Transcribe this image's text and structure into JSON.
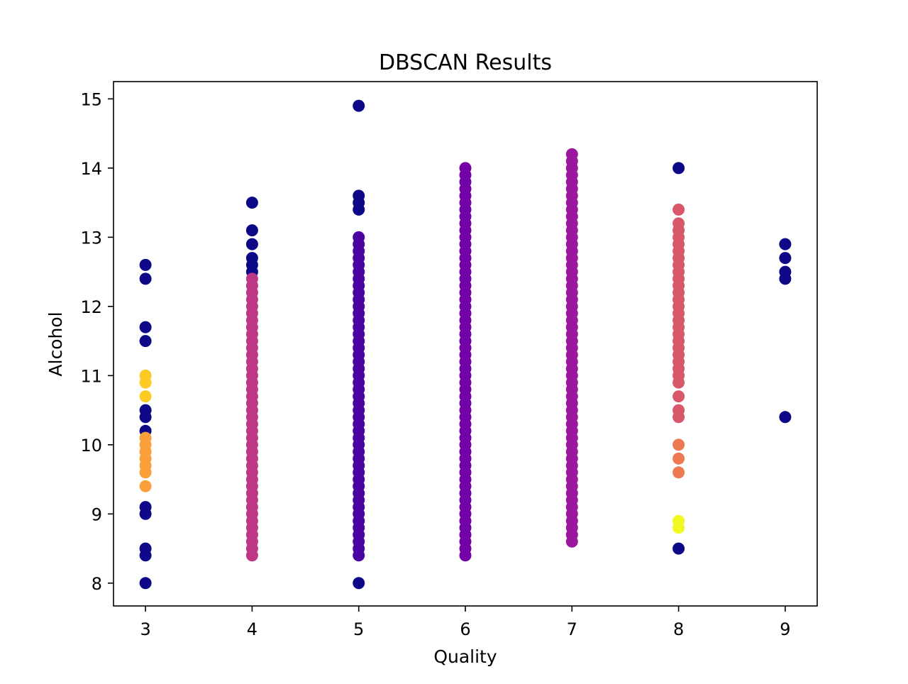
{
  "chart_data": {
    "type": "scatter",
    "title": "DBSCAN Results",
    "xlabel": "Quality",
    "ylabel": "Alcohol",
    "xlim": [
      2.7,
      9.3
    ],
    "ylim": [
      7.67,
      15.25
    ],
    "x_ticks": [
      3,
      4,
      5,
      6,
      7,
      8,
      9
    ],
    "y_ticks": [
      8,
      9,
      10,
      11,
      12,
      13,
      14,
      15
    ],
    "grid": false,
    "legend": "none",
    "colormap": "plasma",
    "series": [
      {
        "cluster": -1,
        "color": "#0d0887",
        "points": [
          [
            3,
            12.6
          ],
          [
            3,
            12.4
          ],
          [
            3,
            11.7
          ],
          [
            3,
            11.5
          ],
          [
            3,
            10.5
          ],
          [
            3,
            10.4
          ],
          [
            3,
            10.2
          ],
          [
            3,
            9.1
          ],
          [
            3,
            9.0
          ],
          [
            3,
            8.5
          ],
          [
            3,
            8.4
          ],
          [
            3,
            8.0
          ],
          [
            4,
            13.5
          ],
          [
            4,
            13.1
          ],
          [
            4,
            12.9
          ],
          [
            4,
            12.7
          ],
          [
            4,
            12.6
          ],
          [
            4,
            12.5
          ],
          [
            5,
            14.9
          ],
          [
            5,
            13.6
          ],
          [
            5,
            13.5
          ],
          [
            5,
            13.4
          ],
          [
            5,
            8.0
          ],
          [
            8,
            14.0
          ],
          [
            8,
            8.5
          ],
          [
            9,
            12.9
          ],
          [
            9,
            12.7
          ],
          [
            9,
            12.5
          ],
          [
            9,
            12.4
          ],
          [
            9,
            10.4
          ]
        ]
      },
      {
        "cluster": 0,
        "color": "#4b03a1",
        "x": 5,
        "range": [
          8.4,
          13.0
        ],
        "step": 0.1
      },
      {
        "cluster": 1,
        "color": "#7301a8",
        "x": 6,
        "range": [
          8.4,
          14.0
        ],
        "step": 0.1
      },
      {
        "cluster": 2,
        "color": "#9c179e",
        "x": 7,
        "range": [
          8.6,
          14.2
        ],
        "step": 0.1
      },
      {
        "cluster": 3,
        "color": "#bd3786",
        "x": 4,
        "range": [
          8.4,
          12.4
        ],
        "step": 0.1
      },
      {
        "cluster": 4,
        "color": "#d8576b",
        "points": [
          [
            8,
            10.4
          ],
          [
            8,
            10.5
          ],
          [
            8,
            10.7
          ],
          [
            8,
            10.9
          ],
          [
            8,
            11.0
          ],
          [
            8,
            11.1
          ],
          [
            8,
            11.2
          ],
          [
            8,
            11.3
          ],
          [
            8,
            11.4
          ],
          [
            8,
            11.5
          ],
          [
            8,
            11.6
          ],
          [
            8,
            11.7
          ],
          [
            8,
            11.8
          ],
          [
            8,
            11.9
          ],
          [
            8,
            12.0
          ],
          [
            8,
            12.1
          ],
          [
            8,
            12.2
          ],
          [
            8,
            12.3
          ],
          [
            8,
            12.4
          ],
          [
            8,
            12.5
          ],
          [
            8,
            12.6
          ],
          [
            8,
            12.7
          ],
          [
            8,
            12.8
          ],
          [
            8,
            12.9
          ],
          [
            8,
            13.0
          ],
          [
            8,
            13.1
          ],
          [
            8,
            13.2
          ],
          [
            8,
            13.4
          ]
        ]
      },
      {
        "cluster": 5,
        "color": "#ed7953",
        "points": [
          [
            8,
            9.6
          ],
          [
            8,
            9.8
          ],
          [
            8,
            10.0
          ]
        ]
      },
      {
        "cluster": 6,
        "color": "#fb9f3a",
        "points": [
          [
            3,
            9.4
          ],
          [
            3,
            9.6
          ],
          [
            3,
            9.7
          ],
          [
            3,
            9.8
          ],
          [
            3,
            9.9
          ],
          [
            3,
            10.0
          ],
          [
            3,
            10.1
          ]
        ]
      },
      {
        "cluster": 7,
        "color": "#fdca26",
        "points": [
          [
            3,
            10.7
          ],
          [
            3,
            10.9
          ],
          [
            3,
            11.0
          ]
        ]
      },
      {
        "cluster": 8,
        "color": "#f0f921",
        "points": [
          [
            8,
            8.8
          ],
          [
            8,
            8.9
          ]
        ]
      }
    ]
  }
}
